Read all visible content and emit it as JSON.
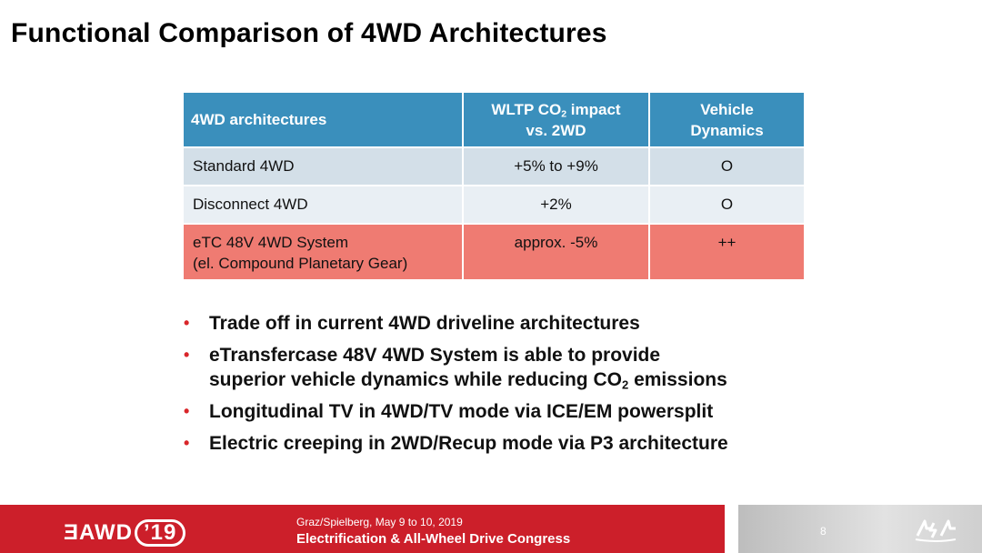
{
  "title": "Functional Comparison of 4WD Architectures",
  "table": {
    "headers": {
      "col1": "4WD architectures",
      "col2_main": "WLTP CO",
      "col2_sub": "2",
      "col2_rest": " impact",
      "col2_line2": "vs. 2WD",
      "col3_line1": "Vehicle",
      "col3_line2": "Dynamics"
    },
    "rows": [
      {
        "name_line1": "Standard 4WD",
        "name_line2": "",
        "co2": "+5% to +9%",
        "dynamics": "O"
      },
      {
        "name_line1": "Disconnect 4WD",
        "name_line2": "",
        "co2": "+2%",
        "dynamics": "O"
      },
      {
        "name_line1": "eTC 48V 4WD System",
        "name_line2": "(el. Compound Planetary Gear)",
        "co2": "approx. -5%",
        "dynamics": "++"
      }
    ]
  },
  "bullets": {
    "b1": "Trade off in current 4WD driveline architectures",
    "b2_line1": "eTransfercase 48V 4WD System is able to provide",
    "b2_line2a": "superior vehicle dynamics while reducing CO",
    "b2_sub": "2",
    "b2_line2b": " emissions",
    "b3": "Longitudinal TV in 4WD/TV mode via ICE/EM powersplit",
    "b4": "Electric creeping in 2WD/Recup mode via P3 architecture",
    "marker": "•"
  },
  "footer": {
    "logo_text": "ƎAWD",
    "logo_year": "’19",
    "location": "Graz/Spielberg, May 9 to 10, 2019",
    "congress": "Electrification & All-Wheel Drive Congress",
    "page": "8"
  },
  "colors": {
    "header": "#3a8fbc",
    "row_light": "#d3dfe8",
    "row_lighter": "#e9eff4",
    "row_highlight": "#ef7b72",
    "footer_red": "#cc1f2a",
    "bullet_red": "#d9262a"
  }
}
